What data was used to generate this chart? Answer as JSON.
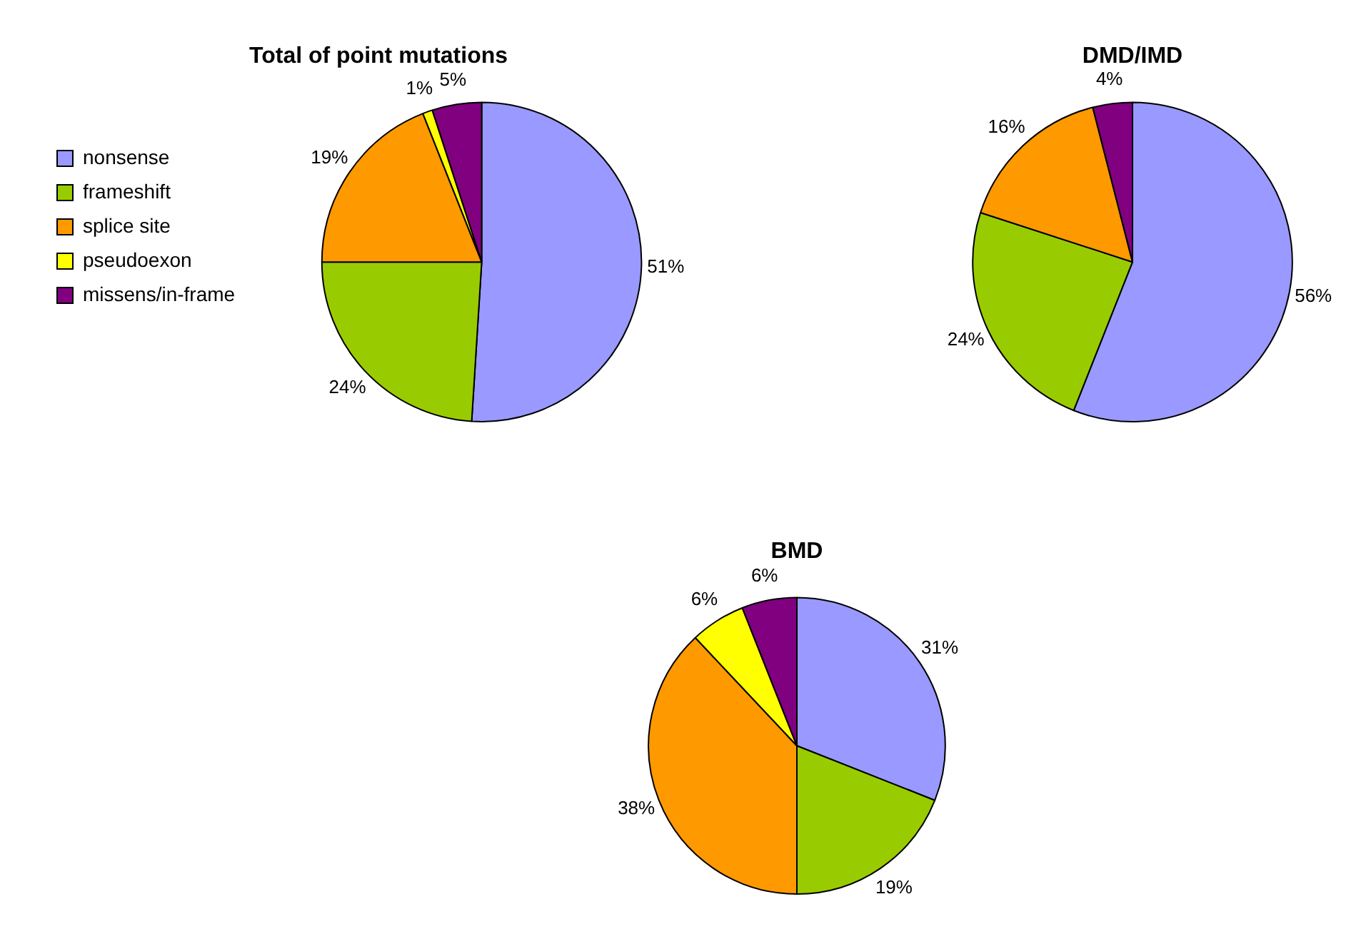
{
  "chart_data": [
    {
      "type": "pie",
      "title": "Total of point mutations",
      "categories": [
        "nonsense",
        "frameshift",
        "splice site",
        "pseudoexon",
        "missens/in-frame"
      ],
      "values": [
        51,
        24,
        19,
        1,
        5
      ],
      "value_labels": [
        "51%",
        "24%",
        "19%",
        "1%",
        "5%"
      ],
      "colors": [
        "#9999ff",
        "#99cc00",
        "#ff9900",
        "#ffff00",
        "#800080"
      ],
      "legend": "left"
    },
    {
      "type": "pie",
      "title": "DMD/IMD",
      "categories": [
        null,
        null,
        null,
        null
      ],
      "values": [
        56,
        24,
        16,
        4
      ],
      "value_labels": [
        "56%",
        "24%",
        "16%",
        "4%"
      ],
      "colors": [
        "#9999ff",
        "#99cc00",
        "#ff9900",
        "#800080"
      ]
    },
    {
      "type": "pie",
      "title": "BMD",
      "categories": [
        null,
        null,
        null,
        null,
        null
      ],
      "values": [
        31,
        19,
        38,
        6,
        6
      ],
      "value_labels": [
        "31%",
        "19%",
        "38%",
        "6%",
        "6%"
      ],
      "colors": [
        "#9999ff",
        "#99cc00",
        "#ff9900",
        "#ffff00",
        "#800080"
      ]
    }
  ]
}
